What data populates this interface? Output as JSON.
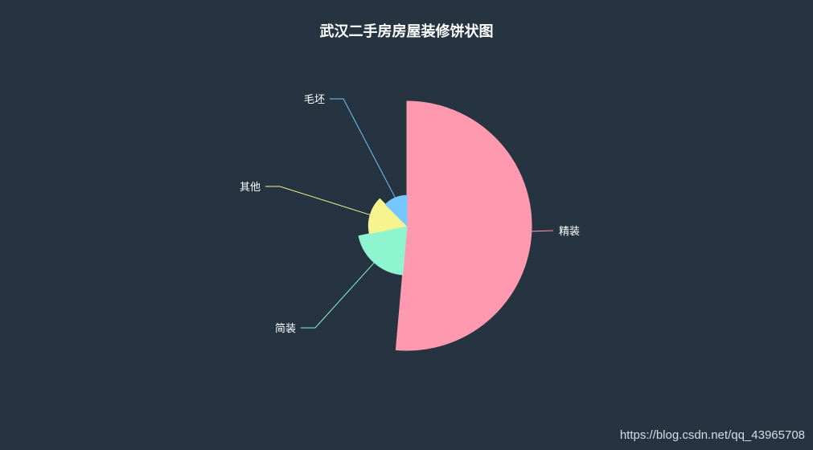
{
  "chart_data": {
    "type": "pie",
    "variant": "rose-radius",
    "title": "武汉二手房房屋装修饼状图",
    "legend": "none",
    "categories": [
      "精装",
      "简装",
      "其他",
      "毛坯"
    ],
    "values": [
      514,
      203,
      158,
      125
    ],
    "colors": [
      "#ff99b0",
      "#8ef5d0",
      "#f7f48f",
      "#74c8ff"
    ],
    "background": "#263441"
  },
  "watermark": "https://blog.csdn.net/qq_43965708"
}
